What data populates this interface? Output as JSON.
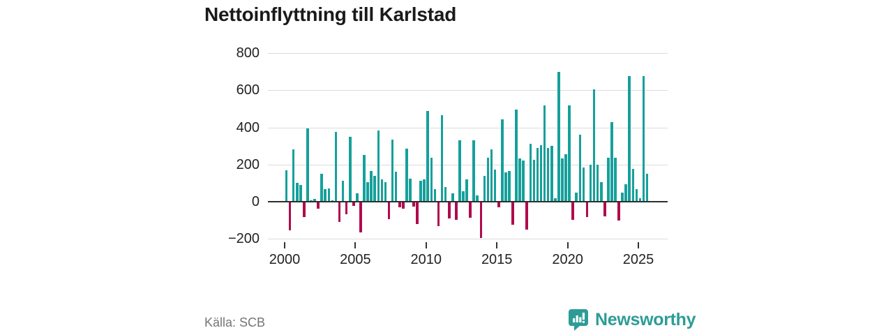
{
  "header": {
    "title": "Nettoinflyttning till Karlstad"
  },
  "footer": {
    "source_label": "Källa: SCB",
    "brand_name": "Newsworthy"
  },
  "colors": {
    "positive_bar": "#16a09b",
    "negative_bar": "#b00a4e",
    "gridline": "#dcdcdc",
    "axis": "#2e2e2e",
    "tick_text": "#222222",
    "muted_text": "#757575",
    "brand_teal": "#2d9c96"
  },
  "chart_data": {
    "type": "bar",
    "title": "Nettoinflyttning till Karlstad",
    "frequency": "quarterly",
    "x_start": "2000-Q1",
    "x_end": "2025-Q3",
    "xlabel": "",
    "ylabel": "",
    "ylim": [
      -200,
      800
    ],
    "grid": true,
    "x_tick_labels": [
      "2000",
      "2005",
      "2010",
      "2015",
      "2020",
      "2025"
    ],
    "y_tick_labels": [
      "800",
      "600",
      "400",
      "200",
      "0",
      "−200"
    ],
    "y_tick_values": [
      800,
      600,
      400,
      200,
      0,
      -200
    ],
    "gridline_values": [
      800,
      600,
      400,
      200,
      -200
    ],
    "values": [
      170,
      -150,
      280,
      100,
      90,
      -80,
      395,
      8,
      15,
      -35,
      150,
      67,
      73,
      8,
      375,
      -103,
      114,
      -65,
      350,
      -19,
      45,
      -160,
      250,
      105,
      165,
      140,
      385,
      120,
      105,
      -90,
      335,
      160,
      -25,
      -35,
      285,
      125,
      -22,
      -117,
      112,
      120,
      490,
      235,
      69,
      -126,
      465,
      80,
      -87,
      47,
      -94,
      330,
      55,
      122,
      -81,
      330,
      35,
      -191,
      140,
      235,
      282,
      174,
      -26,
      445,
      157,
      165,
      -120,
      495,
      233,
      220,
      -147,
      310,
      225,
      290,
      305,
      520,
      290,
      300,
      20,
      700,
      233,
      255,
      520,
      -95,
      48,
      360,
      185,
      -79,
      200,
      605,
      201,
      106,
      -73,
      238,
      428,
      238,
      -97,
      48,
      95,
      675,
      177,
      67,
      19,
      675,
      149
    ]
  }
}
